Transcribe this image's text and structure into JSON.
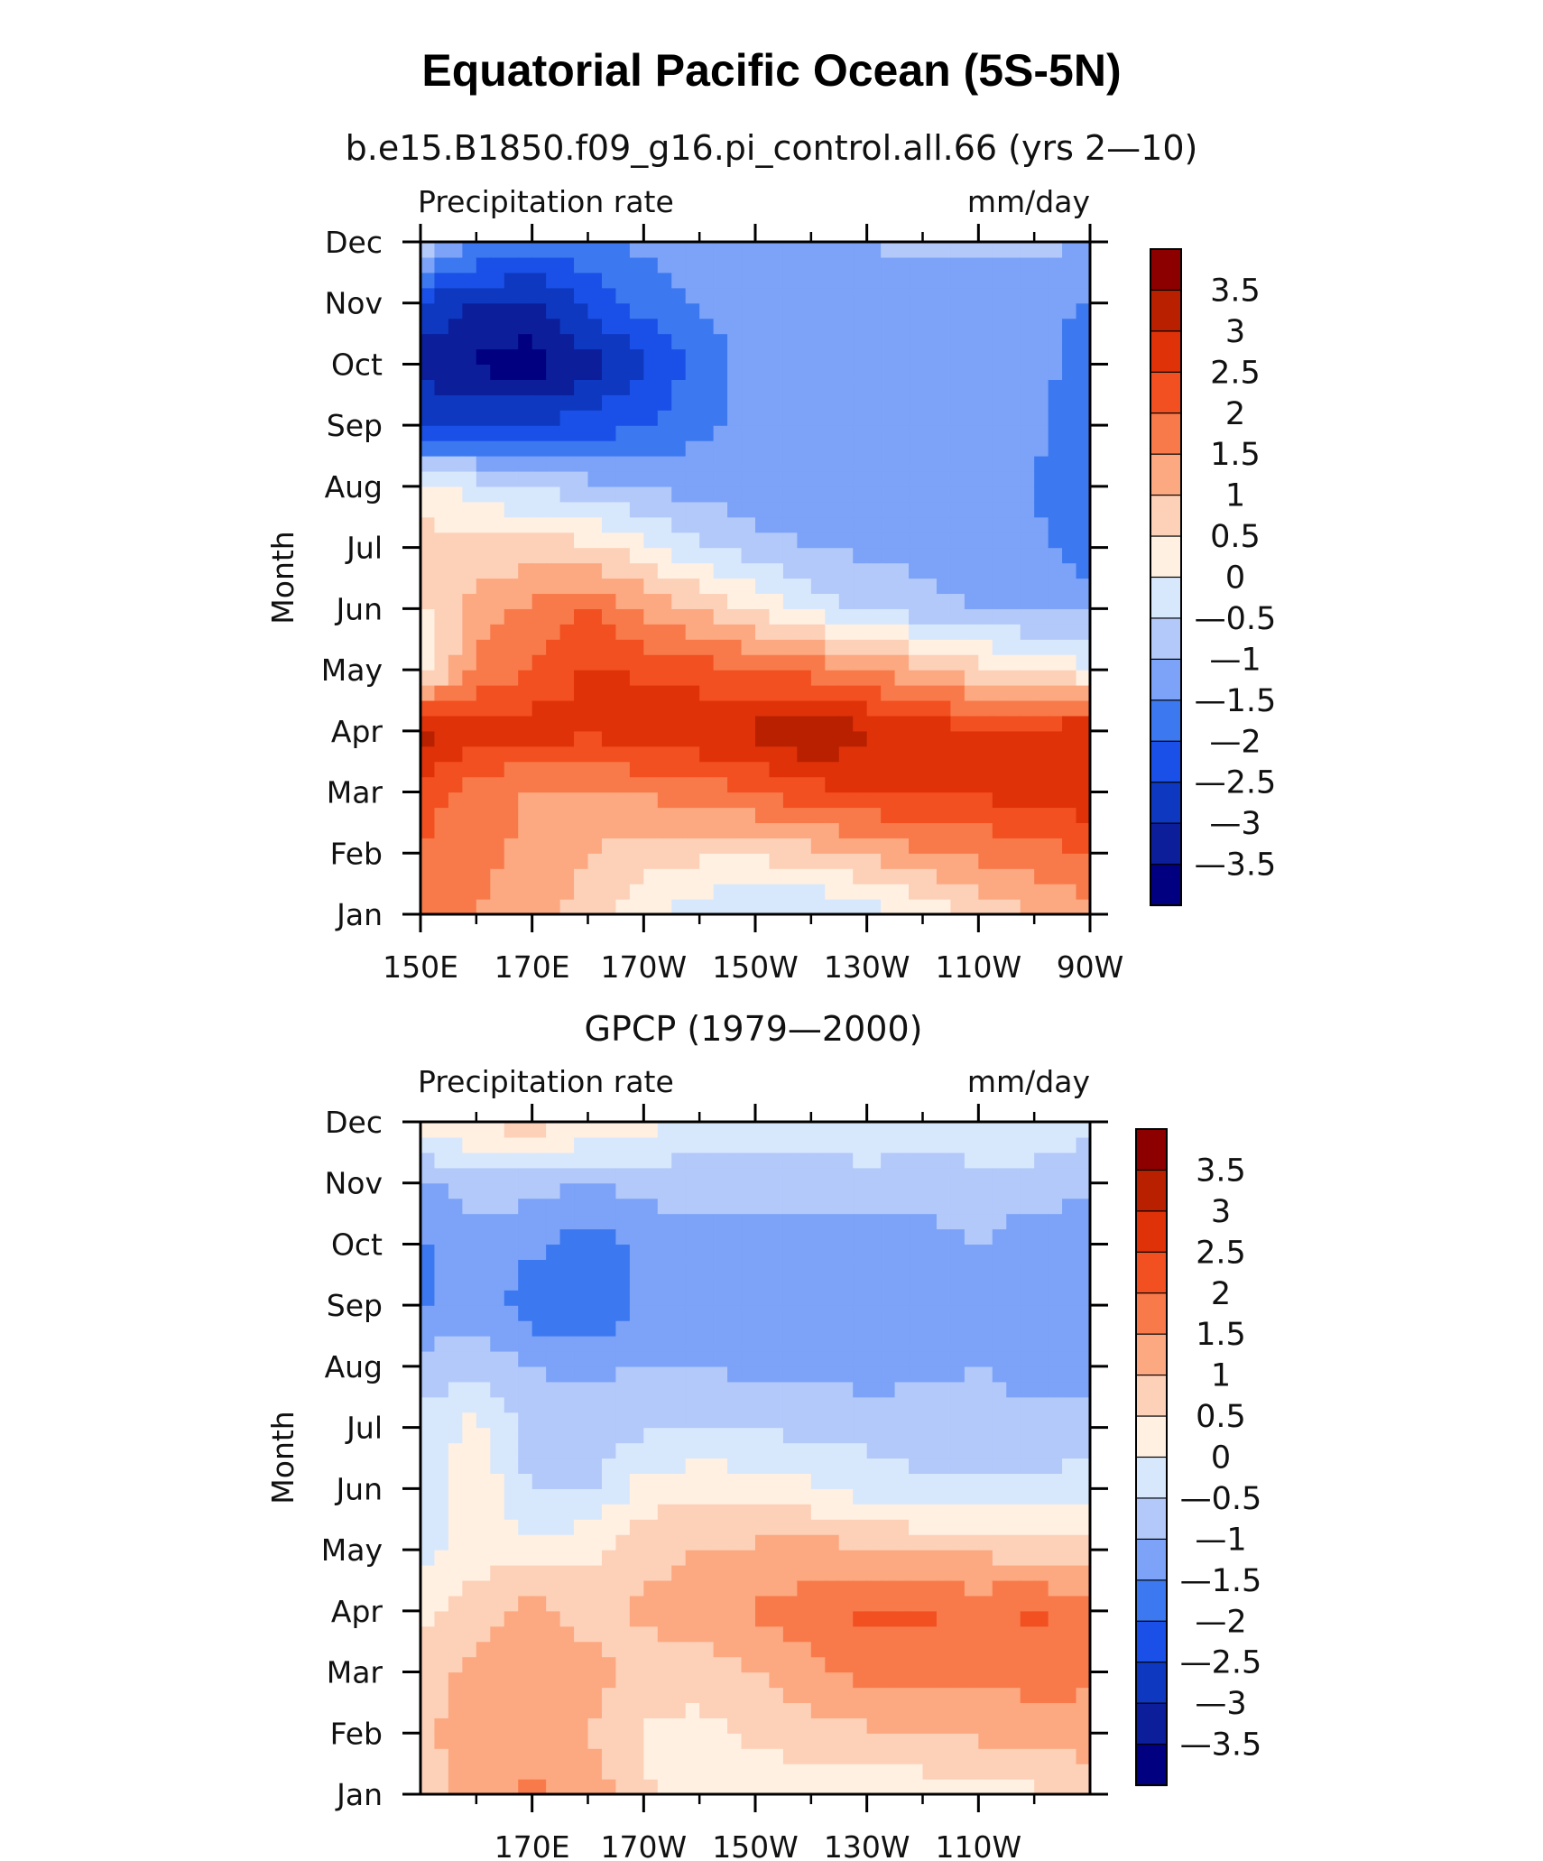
{
  "figure": {
    "title": "Equatorial Pacific Ocean (5S-5N)"
  },
  "colors": {
    "levels": [
      "#000080",
      "#0c1e9a",
      "#0e38c0",
      "#1a50e8",
      "#3c78f0",
      "#7ca3f8",
      "#b2c9fa",
      "#d8e8fc",
      "#fff0e2",
      "#fdd0b8",
      "#fca880",
      "#f87a4a",
      "#f25020",
      "#e03208",
      "#b82000",
      "#8c0000"
    ]
  },
  "chart_data": [
    {
      "type": "heatmap",
      "subtitle": "b.e15.B1850.f09_g16.pi_control.all.66 (yrs 2—10)",
      "left_label": "Precipitation rate",
      "right_label": "mm/day",
      "ylabel": "Month",
      "y_ticks": [
        "Jan",
        "Feb",
        "Mar",
        "Apr",
        "May",
        "Jun",
        "Jul",
        "Aug",
        "Sep",
        "Oct",
        "Nov",
        "Dec"
      ],
      "x_ticks": [
        "150E",
        "170E",
        "170W",
        "150W",
        "130W",
        "110W",
        "90W"
      ],
      "xlim": [
        150,
        270
      ],
      "colorbar_labels": [
        "3.5",
        "3",
        "2.5",
        "2",
        "1.5",
        "1",
        "0.5",
        "0",
        "—0.5",
        "—1",
        "—1.5",
        "—2",
        "—2.5",
        "—3",
        "—3.5"
      ],
      "lon": [
        150,
        160,
        170,
        180,
        190,
        200,
        210,
        220,
        230,
        240,
        250,
        260,
        270
      ],
      "month": [
        "Jan",
        "Feb",
        "Mar",
        "Apr",
        "May",
        "Jun",
        "Jul",
        "Aug",
        "Sep",
        "Oct",
        "Nov",
        "Dec"
      ],
      "values": [
        [
          1.8,
          1.5,
          1.2,
          0.8,
          0.2,
          -0.3,
          -0.6,
          -0.6,
          -0.3,
          0.2,
          0.6,
          1.0,
          1.3
        ],
        [
          2.0,
          1.6,
          1.4,
          1.0,
          0.7,
          0.6,
          0.6,
          0.8,
          1.1,
          1.4,
          1.6,
          1.8,
          2.0
        ],
        [
          2.2,
          1.8,
          1.4,
          1.4,
          1.6,
          1.7,
          2.0,
          2.3,
          2.5,
          2.6,
          2.6,
          2.7,
          2.9
        ],
        [
          3.4,
          2.6,
          2.8,
          2.6,
          2.8,
          3.0,
          3.1,
          3.6,
          3.1,
          2.8,
          2.6,
          2.6,
          3.0
        ],
        [
          0.1,
          1.6,
          2.0,
          2.6,
          2.4,
          2.2,
          2.0,
          1.8,
          1.5,
          1.1,
          0.7,
          0.3,
          0.1
        ],
        [
          0.4,
          1.2,
          1.6,
          2.0,
          1.4,
          1.0,
          0.4,
          -0.2,
          -0.6,
          -0.8,
          -1.0,
          -1.1,
          -1.1
        ],
        [
          0.8,
          0.6,
          0.8,
          0.6,
          0.2,
          -0.4,
          -0.8,
          -1.0,
          -1.1,
          -1.2,
          -1.3,
          -1.4,
          -1.8
        ],
        [
          0.3,
          -0.2,
          -0.6,
          -0.8,
          -1.0,
          -1.2,
          -1.3,
          -1.3,
          -1.4,
          -1.4,
          -1.4,
          -1.5,
          -1.8
        ],
        [
          -2.6,
          -2.4,
          -2.4,
          -2.3,
          -2.0,
          -1.6,
          -1.4,
          -1.3,
          -1.3,
          -1.3,
          -1.3,
          -1.4,
          -1.8
        ],
        [
          -3.2,
          -3.6,
          -3.8,
          -3.2,
          -2.6,
          -1.8,
          -1.3,
          -1.2,
          -1.2,
          -1.2,
          -1.2,
          -1.3,
          -1.8
        ],
        [
          -2.6,
          -3.0,
          -3.2,
          -2.4,
          -1.8,
          -1.5,
          -1.2,
          -1.2,
          -1.2,
          -1.2,
          -1.2,
          -1.2,
          -1.6
        ],
        [
          -0.6,
          -1.4,
          -1.6,
          -1.6,
          -1.4,
          -1.2,
          -1.1,
          -1.0,
          -1.0,
          -0.9,
          -0.9,
          -0.9,
          -1.0
        ]
      ]
    },
    {
      "type": "heatmap",
      "subtitle": "GPCP (1979—2000)",
      "left_label": "Precipitation rate",
      "right_label": "mm/day",
      "ylabel": "Month",
      "y_ticks": [
        "Jan",
        "Feb",
        "Mar",
        "Apr",
        "May",
        "Jun",
        "Jul",
        "Aug",
        "Sep",
        "Oct",
        "Nov",
        "Dec"
      ],
      "x_ticks": [
        "170E",
        "170W",
        "150W",
        "130W",
        "110W"
      ],
      "xlim": [
        150,
        270
      ],
      "colorbar_labels": [
        "3.5",
        "3",
        "2.5",
        "2",
        "1.5",
        "1",
        "0.5",
        "0",
        "—0.5",
        "—1",
        "—1.5",
        "—2",
        "—2.5",
        "—3",
        "—3.5"
      ],
      "lon": [
        150,
        160,
        170,
        180,
        190,
        200,
        210,
        220,
        230,
        240,
        250,
        260,
        270
      ],
      "month": [
        "Jan",
        "Feb",
        "Mar",
        "Apr",
        "May",
        "Jun",
        "Jul",
        "Aug",
        "Sep",
        "Oct",
        "Nov",
        "Dec"
      ],
      "values": [
        [
          0.8,
          1.2,
          1.6,
          1.4,
          0.6,
          0.2,
          0.2,
          0.2,
          0.2,
          0.2,
          0.3,
          0.4,
          0.6
        ],
        [
          0.8,
          1.4,
          1.4,
          1.0,
          0.4,
          0.3,
          0.6,
          0.8,
          0.9,
          1.0,
          1.1,
          1.1,
          1.3
        ],
        [
          0.6,
          1.2,
          1.5,
          1.2,
          0.8,
          0.8,
          1.0,
          1.4,
          1.7,
          1.7,
          1.6,
          1.8,
          1.6
        ],
        [
          0.4,
          0.8,
          1.2,
          0.8,
          1.1,
          1.2,
          1.6,
          1.7,
          2.1,
          2.1,
          1.8,
          2.1,
          1.6
        ],
        [
          -0.3,
          0.3,
          0.2,
          0.4,
          0.8,
          1.0,
          1.1,
          1.2,
          1.1,
          1.0,
          0.9,
          0.8,
          0.6
        ],
        [
          -0.5,
          0.4,
          -0.6,
          -0.6,
          0.2,
          0.4,
          0.3,
          0.1,
          -0.2,
          -0.4,
          -0.4,
          -0.4,
          -0.2
        ],
        [
          -0.4,
          0.2,
          -0.8,
          -0.8,
          -0.6,
          -0.6,
          -0.6,
          -0.6,
          -0.7,
          -0.8,
          -0.8,
          -0.8,
          -0.8
        ],
        [
          -0.8,
          -0.6,
          -1.0,
          -1.1,
          -1.0,
          -1.0,
          -1.1,
          -1.2,
          -1.2,
          -1.1,
          -1.0,
          -1.2,
          -1.2
        ],
        [
          -1.6,
          -1.2,
          -1.8,
          -2.0,
          -1.4,
          -1.2,
          -1.3,
          -1.4,
          -1.5,
          -1.4,
          -1.1,
          -1.3,
          -1.5
        ],
        [
          -1.6,
          -1.2,
          -1.4,
          -1.8,
          -1.4,
          -1.1,
          -1.3,
          -1.4,
          -1.4,
          -1.3,
          -1.0,
          -1.4,
          -1.5
        ],
        [
          -1.2,
          -0.8,
          -0.8,
          -1.0,
          -0.8,
          -0.8,
          -0.8,
          -0.7,
          -0.6,
          -0.6,
          -0.6,
          -0.6,
          -0.8
        ],
        [
          0.4,
          0.6,
          0.8,
          0.5,
          0.2,
          -0.2,
          -0.3,
          -0.3,
          -0.3,
          -0.4,
          -0.3,
          -0.3,
          -0.4
        ]
      ]
    }
  ]
}
